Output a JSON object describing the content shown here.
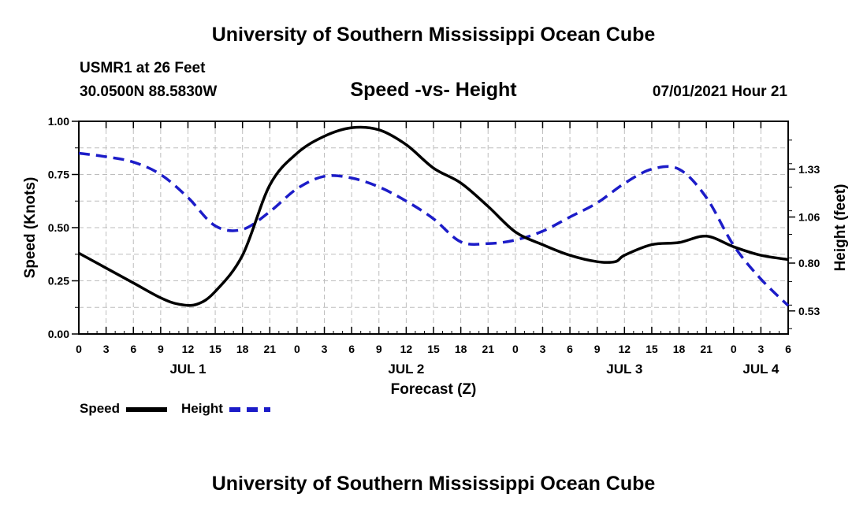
{
  "header": {
    "title": "University of Southern Mississippi Ocean Cube",
    "station": "USMR1 at 26 Feet",
    "coords": "30.0500N  88.5830W",
    "subtitle": "Speed -vs- Height",
    "timestamp": "07/01/2021 Hour 21"
  },
  "footer": {
    "title": "University of Southern Mississippi Ocean Cube"
  },
  "colors": {
    "speed": "#000000",
    "height": "#1c1cc8",
    "grid": "#bdbdbd"
  },
  "chart_data": {
    "type": "line",
    "title": "Speed -vs- Height",
    "xlabel": "Forecast (Z)",
    "ylabel": "Speed (Knots)",
    "y2label": "Height (feet)",
    "x_unit": "forecast hours from JUL 1 00Z",
    "xlim": [
      0,
      78
    ],
    "ylim": [
      0,
      1
    ],
    "y2lim": [
      0.4,
      1.6
    ],
    "yticks": [
      0,
      0.25,
      0.5,
      0.75,
      1.0
    ],
    "ytick_labels": [
      "0.00",
      "0.25",
      "0.50",
      "0.75",
      "1.00"
    ],
    "y2ticks": [
      0.53,
      0.8,
      1.06,
      1.33
    ],
    "y2tick_labels": [
      "0.53",
      "0.80",
      "1.06",
      "1.33"
    ],
    "xticks": [
      0,
      3,
      6,
      9,
      12,
      15,
      18,
      21,
      24,
      27,
      30,
      33,
      36,
      39,
      42,
      45,
      48,
      51,
      54,
      57,
      60,
      63,
      66,
      69,
      72,
      75,
      78
    ],
    "xtick_labels": [
      "0",
      "3",
      "6",
      "9",
      "12",
      "15",
      "18",
      "21",
      "0",
      "3",
      "6",
      "9",
      "12",
      "15",
      "18",
      "21",
      "0",
      "3",
      "6",
      "9",
      "12",
      "15",
      "18",
      "21",
      "0",
      "3",
      "6"
    ],
    "day_labels": [
      {
        "x": 12,
        "label": "JUL 1"
      },
      {
        "x": 36,
        "label": "JUL 2"
      },
      {
        "x": 60,
        "label": "JUL 3"
      },
      {
        "x": 75,
        "label": "JUL 4"
      }
    ],
    "grid": true,
    "legend_position": "bottom-left",
    "series": [
      {
        "name": "Speed",
        "axis": "left",
        "style": "solid",
        "x": [
          0,
          3,
          6,
          9,
          11,
          13,
          15,
          18,
          21,
          24,
          27,
          30,
          33,
          36,
          39,
          42,
          45,
          48,
          51,
          54,
          57,
          59,
          60,
          63,
          66,
          69,
          72,
          75,
          78
        ],
        "values": [
          0.38,
          0.31,
          0.24,
          0.17,
          0.14,
          0.14,
          0.2,
          0.37,
          0.7,
          0.85,
          0.93,
          0.97,
          0.96,
          0.89,
          0.78,
          0.71,
          0.6,
          0.48,
          0.42,
          0.37,
          0.34,
          0.34,
          0.37,
          0.42,
          0.43,
          0.46,
          0.41,
          0.37,
          0.35
        ]
      },
      {
        "name": "Height",
        "axis": "right",
        "style": "dashed",
        "x": [
          0,
          3,
          6,
          9,
          12,
          15,
          18,
          21,
          24,
          27,
          30,
          33,
          36,
          39,
          42,
          45,
          48,
          51,
          54,
          57,
          60,
          63,
          66,
          69,
          72,
          75,
          78
        ],
        "values": [
          1.42,
          1.4,
          1.37,
          1.3,
          1.17,
          1.01,
          0.99,
          1.09,
          1.22,
          1.29,
          1.28,
          1.23,
          1.15,
          1.05,
          0.92,
          0.91,
          0.93,
          0.98,
          1.06,
          1.14,
          1.25,
          1.33,
          1.33,
          1.17,
          0.9,
          0.71,
          0.56
        ]
      }
    ]
  }
}
